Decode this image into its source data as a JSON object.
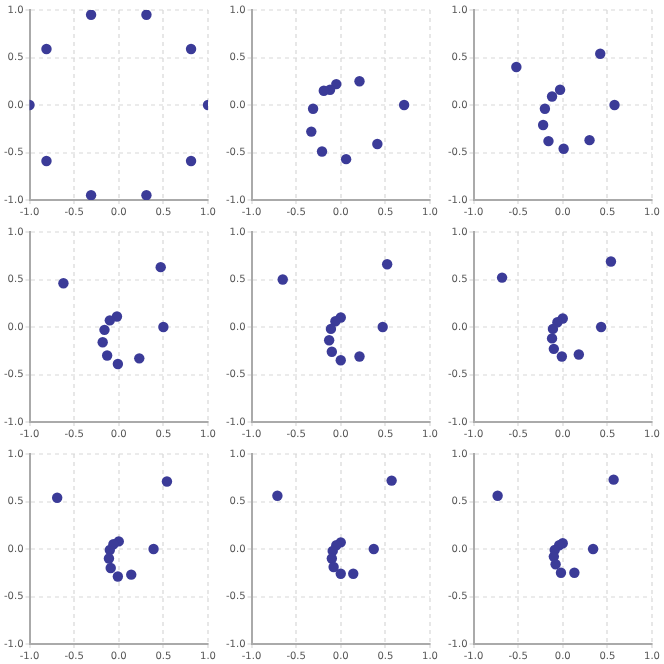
{
  "chart_data": [
    {
      "type": "scatter",
      "x": [
        1,
        0.81,
        0.31,
        -0.31,
        -0.81,
        -1,
        -0.81,
        -0.31,
        0.31,
        0.81
      ],
      "values": [
        0,
        0.59,
        0.95,
        0.95,
        0.59,
        0,
        -0.59,
        -0.95,
        -0.95,
        -0.59
      ],
      "color": "#3b3b98",
      "marker": "circle",
      "grid": true,
      "xlim": [
        -1,
        1
      ],
      "ylim": [
        -1,
        1
      ],
      "xticks": [
        {
          "value": -1,
          "label": "-1.0"
        },
        {
          "value": -0.5,
          "label": "-0.5"
        },
        {
          "value": 0,
          "label": "0.0"
        },
        {
          "value": 0.5,
          "label": "0.5"
        },
        {
          "value": 1,
          "label": "1.0"
        }
      ],
      "yticks": [
        {
          "value": -1,
          "label": "-1.0"
        },
        {
          "value": -0.5,
          "label": "-0.5"
        },
        {
          "value": 0,
          "label": "0.0"
        },
        {
          "value": 0.5,
          "label": "0.5"
        },
        {
          "value": 1,
          "label": "1.0"
        }
      ]
    },
    {
      "type": "scatter",
      "x": [
        0.71,
        0.21,
        -0.05,
        -0.12,
        -0.19,
        -0.31,
        -0.33,
        -0.21,
        0.06,
        0.41
      ],
      "values": [
        0,
        0.25,
        0.22,
        0.16,
        0.15,
        -0.04,
        -0.28,
        -0.49,
        -0.57,
        -0.41
      ],
      "color": "#3b3b98",
      "marker": "circle",
      "grid": true,
      "xlim": [
        -1,
        1
      ],
      "ylim": [
        -1,
        1
      ],
      "xticks": [
        {
          "value": -1,
          "label": "-1.0"
        },
        {
          "value": -0.5,
          "label": "-0.5"
        },
        {
          "value": 0,
          "label": "0.0"
        },
        {
          "value": 0.5,
          "label": "0.5"
        },
        {
          "value": 1,
          "label": "1.0"
        }
      ],
      "yticks": [
        {
          "value": -1,
          "label": "-1.0"
        },
        {
          "value": -0.5,
          "label": "-0.5"
        },
        {
          "value": 0,
          "label": "0.0"
        },
        {
          "value": 0.5,
          "label": "0.5"
        },
        {
          "value": 1,
          "label": "1.0"
        }
      ]
    },
    {
      "type": "scatter",
      "x": [
        0.58,
        0.42,
        -0.52,
        -0.03,
        -0.12,
        -0.2,
        -0.22,
        -0.16,
        0.01,
        0.3
      ],
      "values": [
        0,
        0.54,
        0.4,
        0.16,
        0.09,
        -0.04,
        -0.21,
        -0.38,
        -0.46,
        -0.37
      ],
      "color": "#3b3b98",
      "marker": "circle",
      "grid": true,
      "xlim": [
        -1,
        1
      ],
      "ylim": [
        -1,
        1
      ],
      "xticks": [
        {
          "value": -1,
          "label": "-1.0"
        },
        {
          "value": -0.5,
          "label": "-0.5"
        },
        {
          "value": 0,
          "label": "0.0"
        },
        {
          "value": 0.5,
          "label": "0.5"
        },
        {
          "value": 1,
          "label": "1.0"
        }
      ],
      "yticks": [
        {
          "value": -1,
          "label": "-1.0"
        },
        {
          "value": -0.5,
          "label": "-0.5"
        },
        {
          "value": 0,
          "label": "0.0"
        },
        {
          "value": 0.5,
          "label": "0.5"
        },
        {
          "value": 1,
          "label": "1.0"
        }
      ]
    },
    {
      "type": "scatter",
      "x": [
        0.5,
        0.47,
        -0.62,
        -0.02,
        -0.1,
        -0.16,
        -0.18,
        -0.13,
        -0.01,
        0.23
      ],
      "values": [
        0,
        0.63,
        0.46,
        0.11,
        0.07,
        -0.03,
        -0.16,
        -0.3,
        -0.39,
        -0.33
      ],
      "color": "#3b3b98",
      "marker": "circle",
      "grid": true,
      "xlim": [
        -1,
        1
      ],
      "ylim": [
        -1,
        1
      ],
      "xticks": [
        {
          "value": -1,
          "label": "-1.0"
        },
        {
          "value": -0.5,
          "label": "-0.5"
        },
        {
          "value": 0,
          "label": "0.0"
        },
        {
          "value": 0.5,
          "label": "0.5"
        },
        {
          "value": 1,
          "label": "1.0"
        }
      ],
      "yticks": [
        {
          "value": -1,
          "label": "-1.0"
        },
        {
          "value": -0.5,
          "label": "-0.5"
        },
        {
          "value": 0,
          "label": "0.0"
        },
        {
          "value": 0.5,
          "label": "0.5"
        },
        {
          "value": 1,
          "label": "1.0"
        }
      ]
    },
    {
      "type": "scatter",
      "x": [
        0.47,
        0.52,
        -0.65,
        0,
        -0.06,
        -0.11,
        -0.13,
        -0.1,
        0,
        0.21
      ],
      "values": [
        0,
        0.66,
        0.5,
        0.1,
        0.06,
        -0.02,
        -0.14,
        -0.26,
        -0.35,
        -0.31
      ],
      "color": "#3b3b98",
      "marker": "circle",
      "grid": true,
      "xlim": [
        -1,
        1
      ],
      "ylim": [
        -1,
        1
      ],
      "xticks": [
        {
          "value": -1,
          "label": "-1.0"
        },
        {
          "value": -0.5,
          "label": "-0.5"
        },
        {
          "value": 0,
          "label": "0.0"
        },
        {
          "value": 0.5,
          "label": "0.5"
        },
        {
          "value": 1,
          "label": "1.0"
        }
      ],
      "yticks": [
        {
          "value": -1,
          "label": "-1.0"
        },
        {
          "value": -0.5,
          "label": "-0.5"
        },
        {
          "value": 0,
          "label": "0.0"
        },
        {
          "value": 0.5,
          "label": "0.5"
        },
        {
          "value": 1,
          "label": "1.0"
        }
      ]
    },
    {
      "type": "scatter",
      "x": [
        0.43,
        0.54,
        -0.68,
        0,
        -0.06,
        -0.11,
        -0.12,
        -0.1,
        -0.01,
        0.18
      ],
      "values": [
        0,
        0.69,
        0.52,
        0.09,
        0.05,
        -0.02,
        -0.12,
        -0.23,
        -0.31,
        -0.29
      ],
      "color": "#3b3b98",
      "marker": "circle",
      "grid": true,
      "xlim": [
        -1,
        1
      ],
      "ylim": [
        -1,
        1
      ],
      "xticks": [
        {
          "value": -1,
          "label": "-1.0"
        },
        {
          "value": -0.5,
          "label": "-0.5"
        },
        {
          "value": 0,
          "label": "0.0"
        },
        {
          "value": 0.5,
          "label": "0.5"
        },
        {
          "value": 1,
          "label": "1.0"
        }
      ],
      "yticks": [
        {
          "value": -1,
          "label": "-1.0"
        },
        {
          "value": -0.5,
          "label": "-0.5"
        },
        {
          "value": 0,
          "label": "0.0"
        },
        {
          "value": 0.5,
          "label": "0.5"
        },
        {
          "value": 1,
          "label": "1.0"
        }
      ]
    },
    {
      "type": "scatter",
      "x": [
        0.39,
        0.54,
        -0.69,
        0,
        -0.06,
        -0.1,
        -0.11,
        -0.09,
        -0.01,
        0.14
      ],
      "values": [
        0,
        0.71,
        0.54,
        0.08,
        0.05,
        -0.01,
        -0.1,
        -0.2,
        -0.29,
        -0.27
      ],
      "color": "#3b3b98",
      "marker": "circle",
      "grid": true,
      "xlim": [
        -1,
        1
      ],
      "ylim": [
        -1,
        1
      ],
      "xticks": [
        {
          "value": -1,
          "label": "-1.0"
        },
        {
          "value": -0.5,
          "label": "-0.5"
        },
        {
          "value": 0,
          "label": "0.0"
        },
        {
          "value": 0.5,
          "label": "0.5"
        },
        {
          "value": 1,
          "label": "1.0"
        }
      ],
      "yticks": [
        {
          "value": -1,
          "label": "-1.0"
        },
        {
          "value": -0.5,
          "label": "-0.5"
        },
        {
          "value": 0,
          "label": "0.0"
        },
        {
          "value": 0.5,
          "label": "0.5"
        },
        {
          "value": 1,
          "label": "1.0"
        }
      ]
    },
    {
      "type": "scatter",
      "x": [
        0.37,
        0.57,
        -0.71,
        0,
        -0.05,
        -0.09,
        -0.1,
        -0.08,
        0,
        0.14
      ],
      "values": [
        0,
        0.72,
        0.56,
        0.07,
        0.04,
        -0.02,
        -0.1,
        -0.19,
        -0.26,
        -0.26
      ],
      "color": "#3b3b98",
      "marker": "circle",
      "grid": true,
      "xlim": [
        -1,
        1
      ],
      "ylim": [
        -1,
        1
      ],
      "xticks": [
        {
          "value": -1,
          "label": "-1.0"
        },
        {
          "value": -0.5,
          "label": "-0.5"
        },
        {
          "value": 0,
          "label": "0.0"
        },
        {
          "value": 0.5,
          "label": "0.5"
        },
        {
          "value": 1,
          "label": "1.0"
        }
      ],
      "yticks": [
        {
          "value": -1,
          "label": "-1.0"
        },
        {
          "value": -0.5,
          "label": "-0.5"
        },
        {
          "value": 0,
          "label": "0.0"
        },
        {
          "value": 0.5,
          "label": "0.5"
        },
        {
          "value": 1,
          "label": "1.0"
        }
      ]
    },
    {
      "type": "scatter",
      "x": [
        0.34,
        0.57,
        -0.73,
        0,
        -0.04,
        -0.09,
        -0.1,
        -0.08,
        -0.02,
        0.13
      ],
      "values": [
        0,
        0.73,
        0.56,
        0.06,
        0.04,
        -0.01,
        -0.08,
        -0.16,
        -0.25,
        -0.25
      ],
      "color": "#3b3b98",
      "marker": "circle",
      "grid": true,
      "xlim": [
        -1,
        1
      ],
      "ylim": [
        -1,
        1
      ],
      "xticks": [
        {
          "value": -1,
          "label": "-1.0"
        },
        {
          "value": -0.5,
          "label": "-0.5"
        },
        {
          "value": 0,
          "label": "0.0"
        },
        {
          "value": 0.5,
          "label": "0.5"
        },
        {
          "value": 1,
          "label": "1.0"
        }
      ],
      "yticks": [
        {
          "value": -1,
          "label": "-1.0"
        },
        {
          "value": -0.5,
          "label": "-0.5"
        },
        {
          "value": 0,
          "label": "0.0"
        },
        {
          "value": 0.5,
          "label": "0.5"
        },
        {
          "value": 1,
          "label": "1.0"
        }
      ]
    }
  ]
}
